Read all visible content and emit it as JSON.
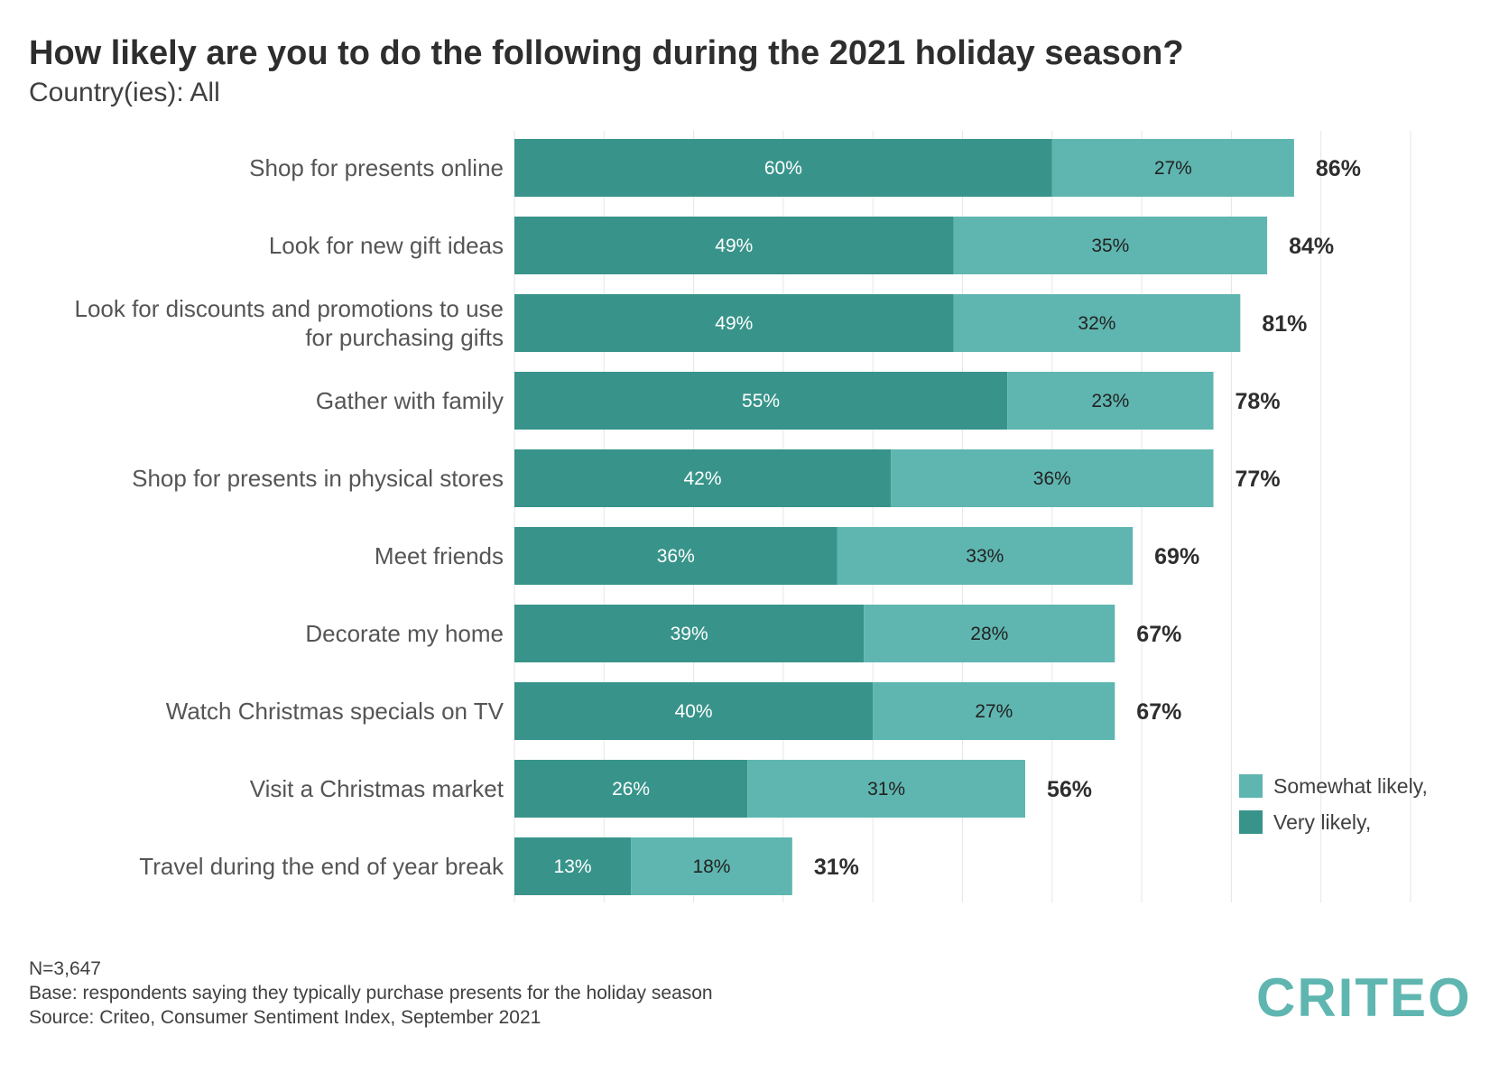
{
  "title": "How likely are you to do the following during the 2021 holiday season?",
  "subtitle": "Country(ies): All",
  "colors": {
    "very_likely": "#38948a",
    "somewhat_likely": "#5fb6b0",
    "gridline": "#e6e6e6",
    "text": "#555555",
    "logo": "#5fb6b0"
  },
  "chart_data": {
    "type": "bar",
    "orientation": "horizontal",
    "stacked": true,
    "categories": [
      "Shop for presents online",
      "Look for new gift ideas",
      "Look for discounts and promotions to use for purchasing gifts",
      "Gather with family",
      "Shop for presents in physical stores",
      "Meet friends",
      "Decorate my home",
      "Watch Christmas specials on TV",
      "Visit a Christmas market",
      "Travel during the end of year break"
    ],
    "category_label_lines": [
      [
        "Shop for presents online"
      ],
      [
        "Look for new gift ideas"
      ],
      [
        "Look for discounts and promotions to use",
        "for purchasing gifts"
      ],
      [
        "Gather with family"
      ],
      [
        "Shop for presents in physical stores"
      ],
      [
        "Meet friends"
      ],
      [
        "Decorate my home"
      ],
      [
        "Watch Christmas specials on TV"
      ],
      [
        "Visit a Christmas market"
      ],
      [
        "Travel during the end of year break"
      ]
    ],
    "series": [
      {
        "name": "Very likely,",
        "values": [
          60,
          49,
          49,
          55,
          42,
          36,
          39,
          40,
          26,
          13
        ]
      },
      {
        "name": "Somewhat likely,",
        "values": [
          27,
          35,
          32,
          23,
          36,
          33,
          28,
          27,
          31,
          18
        ]
      }
    ],
    "totals": [
      86,
      84,
      81,
      78,
      77,
      69,
      67,
      67,
      56,
      31
    ],
    "value_suffix": "%",
    "xlim": [
      0,
      100
    ],
    "grid": true,
    "legend_position": "right",
    "legend_order": [
      "Somewhat likely,",
      "Very likely,"
    ]
  },
  "footer": {
    "n": "N=3,647",
    "base": "Base: respondents saying they typically purchase presents for the holiday season",
    "source": "Source: Criteo, Consumer Sentiment Index, September 2021"
  },
  "logo": {
    "text": "CRITEO",
    "icon": "criteo-logo"
  }
}
